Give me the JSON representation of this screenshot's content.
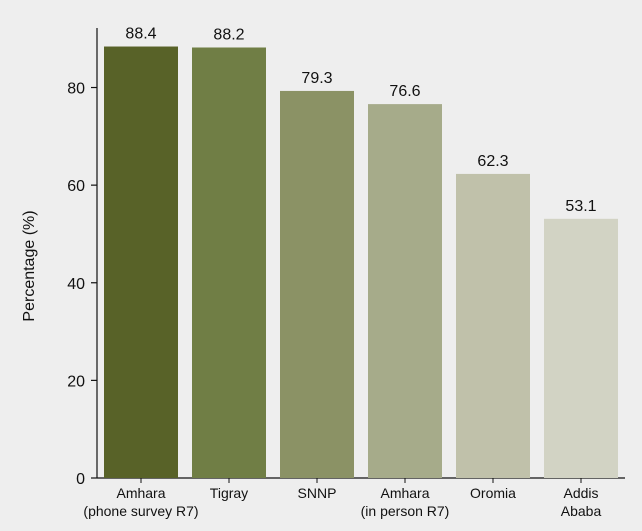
{
  "chart_data": {
    "type": "bar",
    "categories": [
      [
        "Amhara",
        "(phone survey R7)"
      ],
      [
        "Tigray"
      ],
      [
        "SNNP"
      ],
      [
        "Amhara",
        "(in person R7)"
      ],
      [
        "Oromia"
      ],
      [
        "Addis",
        "Ababa"
      ]
    ],
    "values": [
      88.4,
      88.2,
      79.3,
      76.6,
      62.3,
      53.1
    ],
    "value_labels": [
      "88.4",
      "88.2",
      "79.3",
      "76.6",
      "62.3",
      "53.1"
    ],
    "colors": [
      "#586228",
      "#707e45",
      "#8b9265",
      "#a6ab8a",
      "#c0c1aa",
      "#d2d3c4"
    ],
    "xlabel": "",
    "ylabel": "Percentage (%)",
    "ylim": [
      0,
      90
    ],
    "yticks": [
      0,
      20,
      40,
      60,
      80
    ],
    "grid": false,
    "legend": "none"
  },
  "style": {
    "background": "#eeeeee",
    "axis_color": "#111111"
  }
}
